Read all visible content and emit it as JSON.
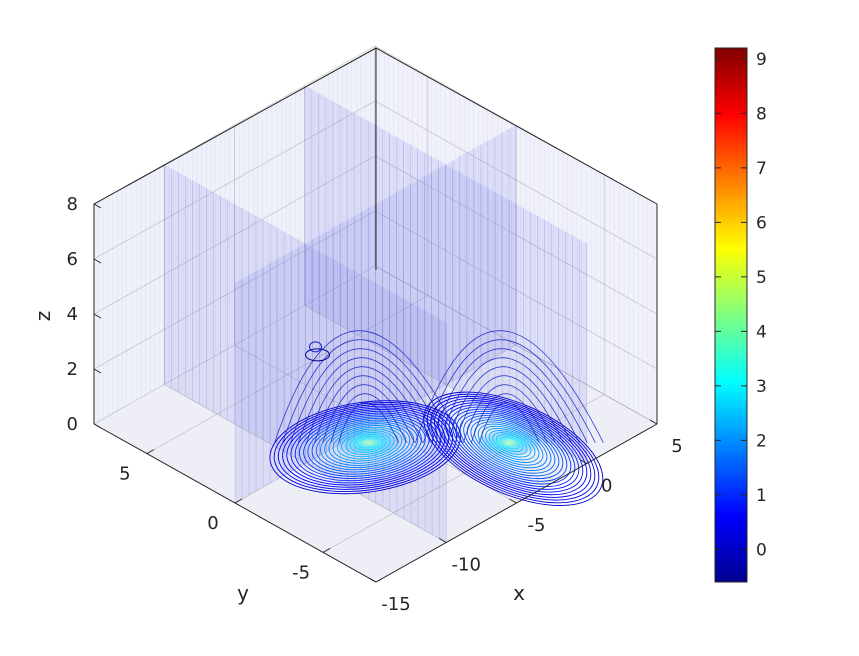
{
  "chart_data": {
    "type": "contour3d",
    "title": "",
    "xlabel": "x",
    "ylabel": "y",
    "zlabel": "z",
    "xlim": [
      -15,
      5
    ],
    "ylim": [
      -8,
      8
    ],
    "zlim": [
      0,
      8
    ],
    "x_ticks": [
      -15,
      -10,
      -5,
      0,
      5
    ],
    "x_tick_labels": [
      "-15",
      "-10",
      "-5",
      "0",
      "5"
    ],
    "y_ticks": [
      -5,
      0,
      5
    ],
    "y_tick_labels": [
      "-5",
      "0",
      "5"
    ],
    "z_ticks": [
      0,
      2,
      4,
      6,
      8
    ],
    "z_tick_labels": [
      "0",
      "2",
      "4",
      "6",
      "8"
    ],
    "grid": true,
    "colormap": "jet",
    "colorbar": {
      "range": [
        -0.6,
        9.2
      ],
      "ticks": [
        0,
        1,
        2,
        3,
        4,
        5,
        6,
        7,
        8,
        9
      ],
      "tick_labels": [
        "0",
        "1",
        "2",
        "3",
        "4",
        "5",
        "6",
        "7",
        "8",
        "9"
      ],
      "placement": "right"
    },
    "peaks": [
      {
        "x": -8,
        "y": -2,
        "value": 3.0
      },
      {
        "x": -3,
        "y": -6,
        "value": 2.6
      }
    ],
    "slices": [
      {
        "plane": "y",
        "at": 0
      },
      {
        "plane": "x",
        "at": -10
      },
      {
        "plane": "x",
        "at": 0
      }
    ],
    "colors": {
      "box": "#262626",
      "slice": "#6f6fd6",
      "contour_low": "#00008f",
      "contour_high": "#00ffff"
    }
  }
}
